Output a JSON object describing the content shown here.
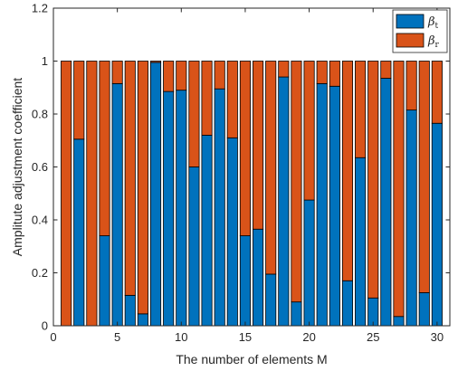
{
  "chart_data": {
    "type": "bar",
    "stacked": true,
    "xlabel": "The number of elements M",
    "ylabel": "Amplitute adjustment coefficient",
    "xlim": [
      0,
      31
    ],
    "ylim": [
      0,
      1.2
    ],
    "xticks": [
      0,
      5,
      10,
      15,
      20,
      25,
      30
    ],
    "yticks": [
      0,
      0.2,
      0.4,
      0.6,
      0.8,
      1,
      1.2
    ],
    "ytick_labels": [
      "0",
      "0.2",
      "0.4",
      "0.6",
      "0.8",
      "1",
      "1.2"
    ],
    "x": [
      1,
      2,
      3,
      4,
      5,
      6,
      7,
      8,
      9,
      10,
      11,
      12,
      13,
      14,
      15,
      16,
      17,
      18,
      19,
      20,
      21,
      22,
      23,
      24,
      25,
      26,
      27,
      28,
      29,
      30
    ],
    "series": [
      {
        "name": "β",
        "subscript": "t",
        "color": "#0072BD",
        "values": [
          0,
          0.705,
          0,
          0.34,
          0.915,
          0.115,
          0.045,
          0.995,
          0.885,
          0.89,
          0.6,
          0.72,
          0.895,
          0.71,
          0.34,
          0.365,
          0.195,
          0.94,
          0.09,
          0.475,
          0.915,
          0.905,
          0.17,
          0.635,
          0.105,
          0.935,
          0.035,
          0.815,
          0.125,
          0.765
        ]
      },
      {
        "name": "β",
        "subscript": "r",
        "color": "#D95319",
        "values": [
          1,
          0.295,
          1,
          0.66,
          0.085,
          0.885,
          0.955,
          0.005,
          0.115,
          0.11,
          0.4,
          0.28,
          0.105,
          0.29,
          0.66,
          0.635,
          0.805,
          0.06,
          0.91,
          0.525,
          0.085,
          0.095,
          0.83,
          0.365,
          0.895,
          0.065,
          0.965,
          0.185,
          0.875,
          0.235
        ]
      }
    ],
    "grid": false,
    "legend_position": "top-right"
  }
}
